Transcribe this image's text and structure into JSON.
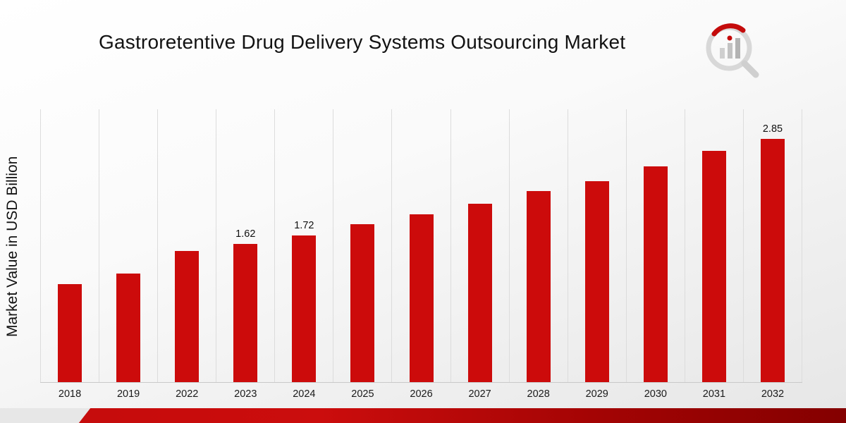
{
  "page": {
    "title": "Gastroretentive Drug Delivery Systems Outsourcing Market"
  },
  "chart_data": {
    "type": "bar",
    "title": "Gastroretentive Drug Delivery Systems Outsourcing Market",
    "xlabel": "",
    "ylabel": "Market Value in USD Billion",
    "categories": [
      "2018",
      "2019",
      "2022",
      "2023",
      "2024",
      "2025",
      "2026",
      "2027",
      "2028",
      "2029",
      "2030",
      "2031",
      "2032"
    ],
    "values": [
      1.15,
      1.27,
      1.54,
      1.62,
      1.72,
      1.85,
      1.97,
      2.09,
      2.24,
      2.36,
      2.53,
      2.71,
      2.85
    ],
    "bar_labels": {
      "2023": "1.62",
      "2024": "1.72",
      "2032": "2.85"
    },
    "ylim": [
      0,
      3.2
    ],
    "bar_color": "#cc0b0b",
    "grid": "vertical-light-gray",
    "legend": "none"
  },
  "colors": {
    "accent_red": "#cc0b0b",
    "footer_dark_red": "#840000",
    "background_gray": "#e6e6e6",
    "gridline": "#dcdcdc"
  },
  "branding": {
    "logo_name": "bar-chart-magnifier-logo"
  }
}
